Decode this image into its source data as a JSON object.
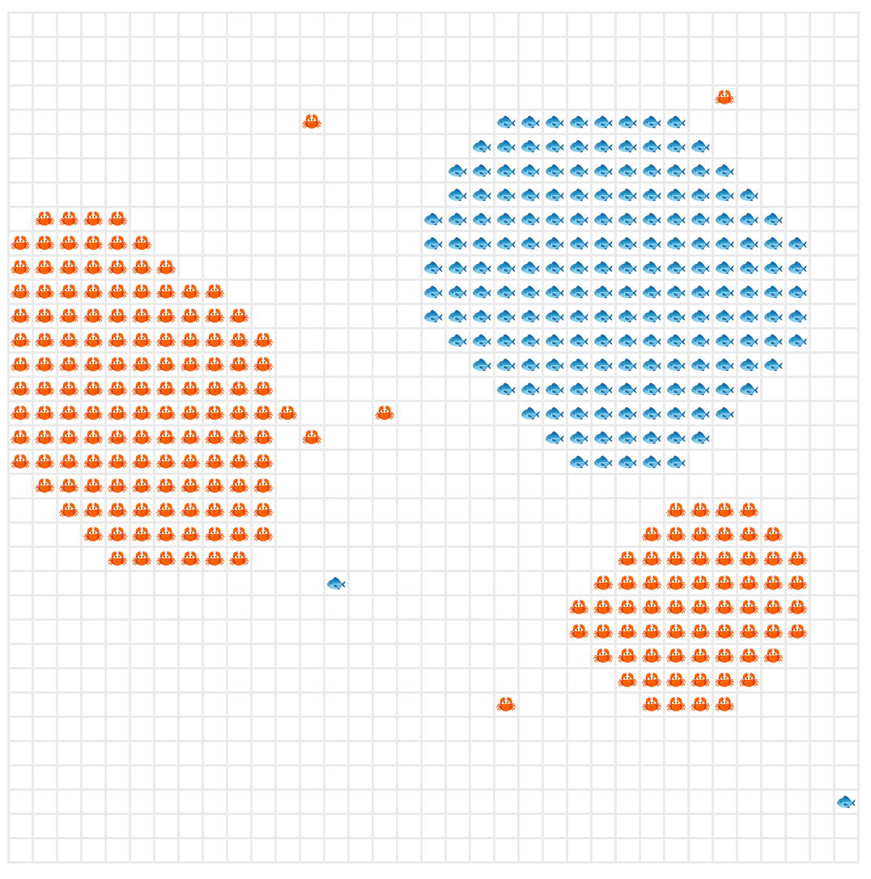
{
  "board": [
    [
      null,
      null,
      null,
      null,
      null,
      null,
      null,
      null,
      null,
      null,
      null,
      null,
      null,
      null,
      null,
      null,
      null,
      null,
      null,
      null,
      null,
      null,
      null,
      null,
      null,
      null,
      null,
      null,
      null,
      null,
      null,
      null,
      null,
      null,
      null
    ],
    [
      null,
      null,
      null,
      null,
      null,
      null,
      null,
      null,
      null,
      null,
      null,
      null,
      null,
      null,
      null,
      null,
      null,
      null,
      null,
      null,
      null,
      null,
      null,
      null,
      null,
      null,
      null,
      null,
      null,
      null,
      null,
      null,
      null,
      null,
      null
    ],
    [
      null,
      null,
      null,
      null,
      null,
      null,
      null,
      null,
      null,
      null,
      null,
      null,
      null,
      null,
      null,
      null,
      null,
      null,
      null,
      null,
      null,
      null,
      null,
      null,
      null,
      null,
      null,
      null,
      null,
      null,
      null,
      null,
      null,
      null,
      null
    ],
    [
      null,
      null,
      null,
      null,
      null,
      null,
      null,
      null,
      null,
      null,
      null,
      null,
      null,
      null,
      null,
      null,
      null,
      null,
      null,
      null,
      null,
      null,
      null,
      null,
      null,
      null,
      null,
      null,
      null,
      "🦀",
      null,
      null,
      null,
      null,
      null
    ],
    [
      null,
      null,
      null,
      null,
      null,
      null,
      null,
      null,
      null,
      null,
      null,
      null,
      "🦀",
      null,
      null,
      null,
      null,
      null,
      null,
      null,
      "🐟",
      "🐟",
      "🐟",
      "🐟",
      "🐟",
      "🐟",
      "🐟",
      "🐟",
      null,
      null,
      null,
      null,
      null,
      null,
      null
    ],
    [
      null,
      null,
      null,
      null,
      null,
      null,
      null,
      null,
      null,
      null,
      null,
      null,
      null,
      null,
      null,
      null,
      null,
      null,
      null,
      "🐟",
      "🐟",
      "🐟",
      "🐟",
      "🐟",
      "🐟",
      "🐟",
      "🐟",
      "🐟",
      "🐟",
      null,
      null,
      null,
      null,
      null,
      null
    ],
    [
      null,
      null,
      null,
      null,
      null,
      null,
      null,
      null,
      null,
      null,
      null,
      null,
      null,
      null,
      null,
      null,
      null,
      null,
      "🐟",
      "🐟",
      "🐟",
      "🐟",
      "🐟",
      "🐟",
      "🐟",
      "🐟",
      "🐟",
      "🐟",
      "🐟",
      "🐟",
      null,
      null,
      null,
      null,
      null
    ],
    [
      null,
      null,
      null,
      null,
      null,
      null,
      null,
      null,
      null,
      null,
      null,
      null,
      null,
      null,
      null,
      null,
      null,
      null,
      "🐟",
      "🐟",
      "🐟",
      "🐟",
      "🐟",
      "🐟",
      "🐟",
      "🐟",
      "🐟",
      "🐟",
      "🐟",
      "🐟",
      "🐟",
      null,
      null,
      null,
      null
    ],
    [
      null,
      "🦀",
      "🦀",
      "🦀",
      "🦀",
      null,
      null,
      null,
      null,
      null,
      null,
      null,
      null,
      null,
      null,
      null,
      null,
      "🐟",
      "🐟",
      "🐟",
      "🐟",
      "🐟",
      "🐟",
      "🐟",
      "🐟",
      "🐟",
      "🐟",
      "🐟",
      "🐟",
      "🐟",
      "🐟",
      "🐟",
      null,
      null,
      null
    ],
    [
      "🦀",
      "🦀",
      "🦀",
      "🦀",
      "🦀",
      "🦀",
      null,
      null,
      null,
      null,
      null,
      null,
      null,
      null,
      null,
      null,
      null,
      "🐟",
      "🐟",
      "🐟",
      "🐟",
      "🐟",
      "🐟",
      "🐟",
      "🐟",
      "🐟",
      "🐟",
      "🐟",
      "🐟",
      "🐟",
      "🐟",
      "🐟",
      "🐟",
      null,
      null
    ],
    [
      "🦀",
      "🦀",
      "🦀",
      "🦀",
      "🦀",
      "🦀",
      "🦀",
      null,
      null,
      null,
      null,
      null,
      null,
      null,
      null,
      null,
      null,
      "🐟",
      "🐟",
      "🐟",
      "🐟",
      "🐟",
      "🐟",
      "🐟",
      "🐟",
      "🐟",
      "🐟",
      "🐟",
      "🐟",
      "🐟",
      "🐟",
      "🐟",
      "🐟",
      null,
      null
    ],
    [
      "🦀",
      "🦀",
      "🦀",
      "🦀",
      "🦀",
      "🦀",
      "🦀",
      "🦀",
      "🦀",
      null,
      null,
      null,
      null,
      null,
      null,
      null,
      null,
      "🐟",
      "🐟",
      "🐟",
      "🐟",
      "🐟",
      "🐟",
      "🐟",
      "🐟",
      "🐟",
      "🐟",
      "🐟",
      "🐟",
      "🐟",
      "🐟",
      "🐟",
      "🐟",
      null,
      null
    ],
    [
      "🦀",
      "🦀",
      "🦀",
      "🦀",
      "🦀",
      "🦀",
      "🦀",
      "🦀",
      "🦀",
      "🦀",
      null,
      null,
      null,
      null,
      null,
      null,
      null,
      "🐟",
      "🐟",
      "🐟",
      "🐟",
      "🐟",
      "🐟",
      "🐟",
      "🐟",
      "🐟",
      "🐟",
      "🐟",
      "🐟",
      "🐟",
      "🐟",
      "🐟",
      "🐟",
      null,
      null
    ],
    [
      "🦀",
      "🦀",
      "🦀",
      "🦀",
      "🦀",
      "🦀",
      "🦀",
      "🦀",
      "🦀",
      "🦀",
      "🦀",
      null,
      null,
      null,
      null,
      null,
      null,
      null,
      "🐟",
      "🐟",
      "🐟",
      "🐟",
      "🐟",
      "🐟",
      "🐟",
      "🐟",
      "🐟",
      "🐟",
      "🐟",
      "🐟",
      "🐟",
      "🐟",
      "🐟",
      null,
      null
    ],
    [
      "🦀",
      "🦀",
      "🦀",
      "🦀",
      "🦀",
      "🦀",
      "🦀",
      "🦀",
      "🦀",
      "🦀",
      "🦀",
      null,
      null,
      null,
      null,
      null,
      null,
      null,
      null,
      "🐟",
      "🐟",
      "🐟",
      "🐟",
      "🐟",
      "🐟",
      "🐟",
      "🐟",
      "🐟",
      "🐟",
      "🐟",
      "🐟",
      "🐟",
      null,
      null,
      null
    ],
    [
      "🦀",
      "🦀",
      "🦀",
      "🦀",
      "🦀",
      "🦀",
      "🦀",
      "🦀",
      "🦀",
      "🦀",
      "🦀",
      null,
      null,
      null,
      null,
      null,
      null,
      null,
      null,
      null,
      "🐟",
      "🐟",
      "🐟",
      "🐟",
      "🐟",
      "🐟",
      "🐟",
      "🐟",
      "🐟",
      "🐟",
      "🐟",
      null,
      null,
      null,
      null
    ],
    [
      "🦀",
      "🦀",
      "🦀",
      "🦀",
      "🦀",
      "🦀",
      "🦀",
      "🦀",
      "🦀",
      "🦀",
      "🦀",
      "🦀",
      null,
      null,
      null,
      "🦀",
      null,
      null,
      null,
      null,
      null,
      "🐟",
      "🐟",
      "🐟",
      "🐟",
      "🐟",
      "🐟",
      "🐟",
      "🐟",
      "🐟",
      null,
      null,
      null,
      null,
      null
    ],
    [
      "🦀",
      "🦀",
      "🦀",
      "🦀",
      "🦀",
      "🦀",
      "🦀",
      "🦀",
      "🦀",
      "🦀",
      "🦀",
      null,
      "🦀",
      null,
      null,
      null,
      null,
      null,
      null,
      null,
      null,
      null,
      "🐟",
      "🐟",
      "🐟",
      "🐟",
      "🐟",
      "🐟",
      "🐟",
      null,
      null,
      null,
      null,
      null,
      null
    ],
    [
      "🦀",
      "🦀",
      "🦀",
      "🦀",
      "🦀",
      "🦀",
      "🦀",
      "🦀",
      "🦀",
      "🦀",
      "🦀",
      null,
      null,
      null,
      null,
      null,
      null,
      null,
      null,
      null,
      null,
      null,
      null,
      "🐟",
      "🐟",
      "🐟",
      "🐟",
      "🐟",
      null,
      null,
      null,
      null,
      null,
      null,
      null
    ],
    [
      null,
      "🦀",
      "🦀",
      "🦀",
      "🦀",
      "🦀",
      "🦀",
      "🦀",
      "🦀",
      "🦀",
      "🦀",
      null,
      null,
      null,
      null,
      null,
      null,
      null,
      null,
      null,
      null,
      null,
      null,
      null,
      null,
      null,
      null,
      null,
      null,
      null,
      null,
      null,
      null,
      null,
      null
    ],
    [
      null,
      null,
      "🦀",
      "🦀",
      "🦀",
      "🦀",
      "🦀",
      "🦀",
      "🦀",
      "🦀",
      "🦀",
      null,
      null,
      null,
      null,
      null,
      null,
      null,
      null,
      null,
      null,
      null,
      null,
      null,
      null,
      null,
      null,
      "🦀",
      "🦀",
      "🦀",
      "🦀",
      null,
      null,
      null,
      null
    ],
    [
      null,
      null,
      null,
      "🦀",
      "🦀",
      "🦀",
      "🦀",
      "🦀",
      "🦀",
      "🦀",
      "🦀",
      null,
      null,
      null,
      null,
      null,
      null,
      null,
      null,
      null,
      null,
      null,
      null,
      null,
      null,
      null,
      "🦀",
      "🦀",
      "🦀",
      "🦀",
      "🦀",
      "🦀",
      null,
      null,
      null
    ],
    [
      null,
      null,
      null,
      null,
      "🦀",
      "🦀",
      "🦀",
      "🦀",
      "🦀",
      "🦀",
      null,
      null,
      null,
      null,
      null,
      null,
      null,
      null,
      null,
      null,
      null,
      null,
      null,
      null,
      null,
      "🦀",
      "🦀",
      "🦀",
      "🦀",
      "🦀",
      "🦀",
      "🦀",
      "🦀",
      null,
      null
    ],
    [
      null,
      null,
      null,
      null,
      null,
      null,
      null,
      null,
      null,
      null,
      null,
      null,
      null,
      "🐟",
      null,
      null,
      null,
      null,
      null,
      null,
      null,
      null,
      null,
      null,
      "🦀",
      "🦀",
      "🦀",
      "🦀",
      "🦀",
      "🦀",
      "🦀",
      "🦀",
      "🦀",
      null,
      null
    ],
    [
      null,
      null,
      null,
      null,
      null,
      null,
      null,
      null,
      null,
      null,
      null,
      null,
      null,
      null,
      null,
      null,
      null,
      null,
      null,
      null,
      null,
      null,
      null,
      "🦀",
      "🦀",
      "🦀",
      "🦀",
      "🦀",
      "🦀",
      "🦀",
      "🦀",
      "🦀",
      "🦀",
      null,
      null
    ],
    [
      null,
      null,
      null,
      null,
      null,
      null,
      null,
      null,
      null,
      null,
      null,
      null,
      null,
      null,
      null,
      null,
      null,
      null,
      null,
      null,
      null,
      null,
      null,
      "🦀",
      "🦀",
      "🦀",
      "🦀",
      "🦀",
      "🦀",
      "🦀",
      "🦀",
      "🦀",
      "🦀",
      null,
      null
    ],
    [
      null,
      null,
      null,
      null,
      null,
      null,
      null,
      null,
      null,
      null,
      null,
      null,
      null,
      null,
      null,
      null,
      null,
      null,
      null,
      null,
      null,
      null,
      null,
      null,
      "🦀",
      "🦀",
      "🦀",
      "🦀",
      "🦀",
      "🦀",
      "🦀",
      "🦀",
      null,
      null,
      null
    ],
    [
      null,
      null,
      null,
      null,
      null,
      null,
      null,
      null,
      null,
      null,
      null,
      null,
      null,
      null,
      null,
      null,
      null,
      null,
      null,
      null,
      null,
      null,
      null,
      null,
      null,
      "🦀",
      "🦀",
      "🦀",
      "🦀",
      "🦀",
      "🦀",
      null,
      null,
      null,
      null
    ],
    [
      null,
      null,
      null,
      null,
      null,
      null,
      null,
      null,
      null,
      null,
      null,
      null,
      null,
      null,
      null,
      null,
      null,
      null,
      null,
      null,
      "🦀",
      null,
      null,
      null,
      null,
      null,
      "🦀",
      "🦀",
      "🦀",
      "🦀",
      null,
      null,
      null,
      null,
      null
    ],
    [
      null,
      null,
      null,
      null,
      null,
      null,
      null,
      null,
      null,
      null,
      null,
      null,
      null,
      null,
      null,
      null,
      null,
      null,
      null,
      null,
      null,
      null,
      null,
      null,
      null,
      null,
      null,
      null,
      null,
      null,
      null,
      null,
      null,
      null,
      null
    ],
    [
      null,
      null,
      null,
      null,
      null,
      null,
      null,
      null,
      null,
      null,
      null,
      null,
      null,
      null,
      null,
      null,
      null,
      null,
      null,
      null,
      null,
      null,
      null,
      null,
      null,
      null,
      null,
      null,
      null,
      null,
      null,
      null,
      null,
      null,
      null
    ],
    [
      null,
      null,
      null,
      null,
      null,
      null,
      null,
      null,
      null,
      null,
      null,
      null,
      null,
      null,
      null,
      null,
      null,
      null,
      null,
      null,
      null,
      null,
      null,
      null,
      null,
      null,
      null,
      null,
      null,
      null,
      null,
      null,
      null,
      null,
      null
    ],
    [
      null,
      null,
      null,
      null,
      null,
      null,
      null,
      null,
      null,
      null,
      null,
      null,
      null,
      null,
      null,
      null,
      null,
      null,
      null,
      null,
      null,
      null,
      null,
      null,
      null,
      null,
      null,
      null,
      null,
      null,
      null,
      null,
      null,
      null,
      "🐟"
    ],
    [
      null,
      null,
      null,
      null,
      null,
      null,
      null,
      null,
      null,
      null,
      null,
      null,
      null,
      null,
      null,
      null,
      null,
      null,
      null,
      null,
      null,
      null,
      null,
      null,
      null,
      null,
      null,
      null,
      null,
      null,
      null,
      null,
      null,
      null,
      null
    ],
    [
      null,
      null,
      null,
      null,
      null,
      null,
      null,
      null,
      null,
      null,
      null,
      null,
      null,
      null,
      null,
      null,
      null,
      null,
      null,
      null,
      null,
      null,
      null,
      null,
      null,
      null,
      null,
      null,
      null,
      null,
      null,
      null,
      null,
      null,
      null
    ]
  ]
}
